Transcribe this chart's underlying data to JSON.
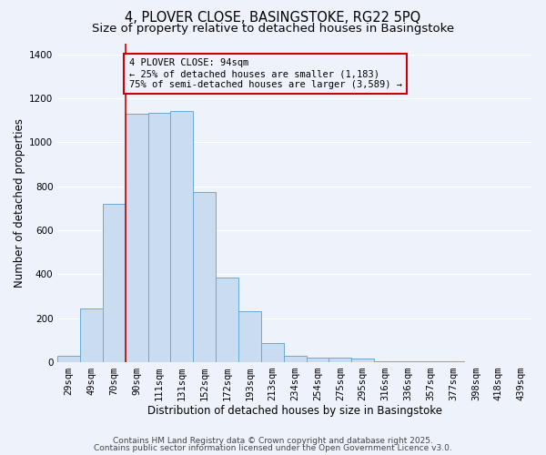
{
  "title_line1": "4, PLOVER CLOSE, BASINGSTOKE, RG22 5PQ",
  "title_line2": "Size of property relative to detached houses in Basingstoke",
  "xlabel": "Distribution of detached houses by size in Basingstoke",
  "ylabel": "Number of detached properties",
  "bar_labels": [
    "29sqm",
    "49sqm",
    "70sqm",
    "90sqm",
    "111sqm",
    "131sqm",
    "152sqm",
    "172sqm",
    "193sqm",
    "213sqm",
    "234sqm",
    "254sqm",
    "275sqm",
    "295sqm",
    "316sqm",
    "336sqm",
    "357sqm",
    "377sqm",
    "398sqm",
    "418sqm",
    "439sqm"
  ],
  "bar_values": [
    30,
    245,
    720,
    1130,
    1135,
    1140,
    775,
    385,
    230,
    85,
    30,
    20,
    20,
    15,
    5,
    5,
    5,
    5,
    0,
    0,
    0
  ],
  "bar_color": "#c9dcf0",
  "bar_edge_color": "#6aaad4",
  "background_color": "#eef2fb",
  "grid_color": "#ffffff",
  "vline_color": "#cc0000",
  "box_edge_color": "#cc0000",
  "ylim": [
    0,
    1450
  ],
  "yticks": [
    0,
    200,
    400,
    600,
    800,
    1000,
    1200,
    1400
  ],
  "annotation_box_text": "4 PLOVER CLOSE: 94sqm\n← 25% of detached houses are smaller (1,183)\n75% of semi-detached houses are larger (3,589) →",
  "footnote1": "Contains HM Land Registry data © Crown copyright and database right 2025.",
  "footnote2": "Contains public sector information licensed under the Open Government Licence v3.0.",
  "title_fontsize": 10.5,
  "subtitle_fontsize": 9.5,
  "xlabel_fontsize": 8.5,
  "ylabel_fontsize": 8.5,
  "tick_fontsize": 7.5,
  "annot_fontsize": 7.5,
  "footnote_fontsize": 6.5
}
